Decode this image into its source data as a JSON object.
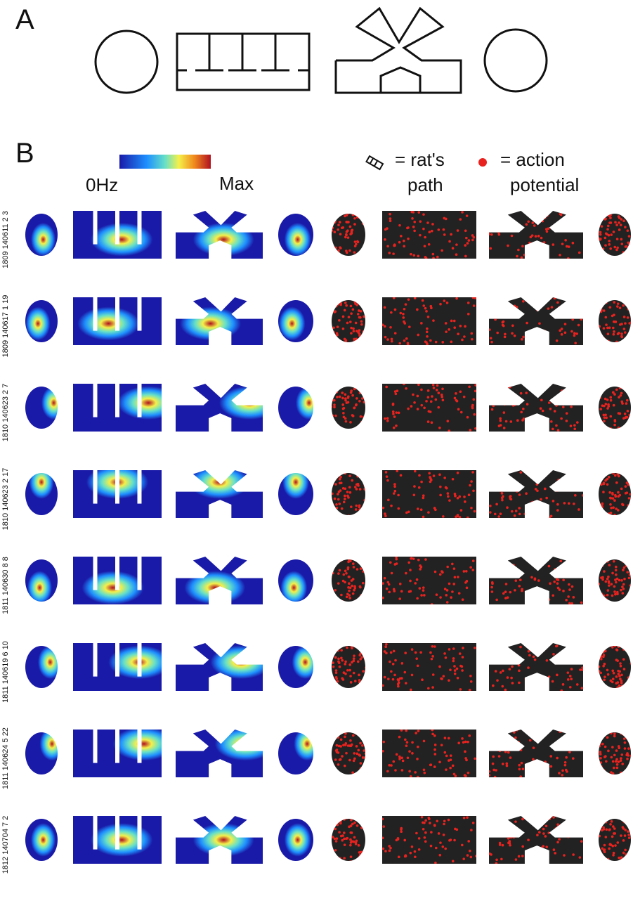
{
  "panel_a_label": "A",
  "panel_b_label": "B",
  "colorbar": {
    "low_label": "0Hz",
    "high_label": "Max"
  },
  "legend": {
    "path_label": "= rat's",
    "path_label2": "path",
    "spike_label": "= action",
    "spike_label2": "potential",
    "path_color": "#111111",
    "spike_color": "#e8231f"
  },
  "environments": [
    "circle",
    "hairpin",
    "y-maze",
    "circle"
  ],
  "cells": [
    {
      "label": "1809 140611 2 3",
      "peak": [
        0.55,
        0.6
      ]
    },
    {
      "label": "1809 140617 1 19",
      "peak": [
        0.4,
        0.55
      ]
    },
    {
      "label": "1810 140623 2 7",
      "peak": [
        0.85,
        0.4
      ]
    },
    {
      "label": "1810 140623 2 17",
      "peak": [
        0.5,
        0.25
      ]
    },
    {
      "label": "1811 140630 8 8",
      "peak": [
        0.45,
        0.65
      ]
    },
    {
      "label": "1811 140619 6 10",
      "peak": [
        0.75,
        0.4
      ]
    },
    {
      "label": "1811 140624 5 22",
      "peak": [
        0.8,
        0.3
      ]
    },
    {
      "label": "1812 140704 7 2",
      "peak": [
        0.55,
        0.5
      ]
    }
  ],
  "colors": {
    "low": "#1a1aa8",
    "high": "#c0102a"
  }
}
